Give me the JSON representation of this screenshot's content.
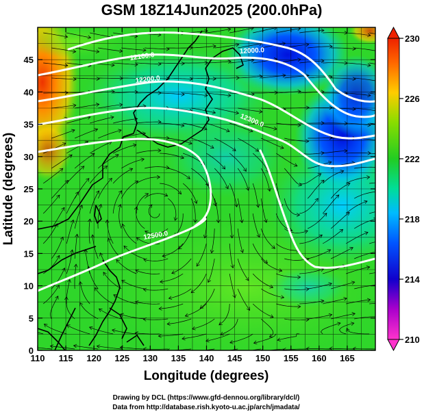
{
  "title": "GSM 18Z14Jun2025 (200.0hPa)",
  "x_axis": {
    "label": "Longitude (degrees)",
    "range": [
      110,
      170
    ],
    "ticks": [
      "110",
      "115",
      "120",
      "125",
      "130",
      "135",
      "140",
      "145",
      "150",
      "155",
      "160",
      "165"
    ]
  },
  "y_axis": {
    "label": "Latitude  (degrees)",
    "range": [
      0,
      50
    ],
    "ticks": [
      "0",
      "5",
      "10",
      "15",
      "20",
      "25",
      "30",
      "35",
      "40",
      "45"
    ]
  },
  "colorbar": {
    "range": [
      210,
      230
    ],
    "ticks": [
      "210",
      "214",
      "218",
      "222",
      "226",
      "230"
    ]
  },
  "contours": {
    "labels": [
      "12100.0",
      "12200.0",
      "12000.0",
      "12300.0",
      "12500.0"
    ]
  },
  "credits": {
    "line1": "Drawing by DCL (https://www.gfd-dennou.org/library/dcl/)",
    "line2": "Data from http://database.rish.kyoto-u.ac.jp/arch/jmadata/"
  },
  "colors": {
    "map_dominant": "#22dd22",
    "cold": "#1133ff",
    "warm": "#ff5500",
    "contour": "#ffffff",
    "streamline": "#000000"
  }
}
